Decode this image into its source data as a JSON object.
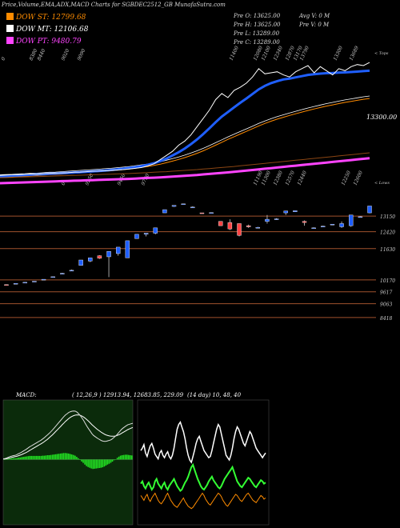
{
  "title": "Price,Volume,EMA,ADX,MACD Charts for SGBDEC2512_GB MunafaSutra.com",
  "legend": [
    {
      "label": "DOW ST: 12799.68",
      "color": "#ff8c00"
    },
    {
      "label": "DOW MT: 12106.68",
      "color": "#ffffff"
    },
    {
      "label": "DOW PT: 9480.79",
      "color": "#ff44ff"
    }
  ],
  "ohlc": {
    "open": "Pre   O: 13625.00",
    "high": "Pre   H: 13625.00",
    "low": "Pre   L: 13289.00",
    "close": "Pre   C: 13289.00",
    "avg_volume": "Avg V: 0  M",
    "volume": "Pre   V: 0  M"
  },
  "top_label": "< Tops",
  "bottom_label": "< Lows",
  "price_label": "13300.00",
  "chart_data": [
    {
      "type": "line",
      "name": "price-ema",
      "top_ticks": [
        "0",
        "8380",
        "8440",
        "9020",
        "9090",
        "11400",
        "12080",
        "12100",
        "12340",
        "12870",
        "13170",
        "13790",
        "13300",
        "13689"
      ],
      "bottom_ticks": [
        "0",
        "9250",
        "9450",
        "9790",
        "11190",
        "11300",
        "12380",
        "12570",
        "12440",
        "12250",
        "12600"
      ],
      "close": [
        8340,
        8360,
        8370,
        8380,
        8390,
        8410,
        8400,
        8420,
        8440,
        8450,
        8460,
        8470,
        8490,
        8500,
        8520,
        8540,
        8550,
        8560,
        8580,
        8600,
        8620,
        8650,
        8680,
        8720,
        8800,
        8900,
        9100,
        9300,
        9500,
        9800,
        10000,
        10300,
        10700,
        11100,
        11500,
        12000,
        12300,
        12100,
        12450,
        12600,
        12800,
        13100,
        13500,
        13250,
        13300,
        13350,
        13200,
        13100,
        13350,
        13500,
        13650,
        13300,
        13600,
        13400,
        13200,
        13500,
        13400,
        13600,
        13700,
        13650,
        13800
      ],
      "ema_short": [
        8300,
        8310,
        8330,
        8340,
        8360,
        8370,
        8390,
        8400,
        8420,
        8430,
        8450,
        8460,
        8480,
        8490,
        8510,
        8530,
        8550,
        8570,
        8600,
        8630,
        8660,
        8700,
        8740,
        8790,
        8850,
        8930,
        9030,
        9150,
        9300,
        9460,
        9640,
        9850,
        10080,
        10340,
        10620,
        10910,
        11180,
        11400,
        11630,
        11850,
        12060,
        12280,
        12500,
        12670,
        12800,
        12900,
        12980,
        13020,
        13080,
        13140,
        13200,
        13230,
        13260,
        13280,
        13290,
        13310,
        13320,
        13340,
        13360,
        13380,
        13400
      ],
      "ema_mid": [
        8250,
        8260,
        8270,
        8290,
        8300,
        8320,
        8330,
        8350,
        8370,
        8380,
        8400,
        8420,
        8440,
        8460,
        8480,
        8500,
        8520,
        8540,
        8560,
        8590,
        8620,
        8650,
        8690,
        8730,
        8770,
        8820,
        8880,
        8950,
        9030,
        9110,
        9200,
        9300,
        9410,
        9530,
        9660,
        9800,
        9940,
        10080,
        10210,
        10340,
        10470,
        10600,
        10730,
        10850,
        10960,
        11060,
        11150,
        11240,
        11320,
        11400,
        11480,
        11550,
        11620,
        11690,
        11750,
        11810,
        11870,
        11920,
        11970,
        12020,
        12060
      ],
      "ema_long": [
        8220,
        8230,
        8240,
        8250,
        8260,
        8270,
        8280,
        8290,
        8300,
        8310,
        8320,
        8330,
        8340,
        8350,
        8360,
        8370,
        8380,
        8390,
        8400,
        8410,
        8420,
        8430,
        8445,
        8460,
        8475,
        8490,
        8505,
        8520,
        8540,
        8560,
        8580,
        8600,
        8620,
        8645,
        8670,
        8695,
        8720,
        8745,
        8770,
        8800,
        8830,
        8860,
        8890,
        8920,
        8950,
        8980,
        9010,
        9040,
        9070,
        9100,
        9130,
        9160,
        9190,
        9220,
        9250,
        9280,
        9310,
        9340,
        9370,
        9400,
        9430
      ],
      "ylim": [
        8000,
        14500
      ]
    },
    {
      "type": "candlestick",
      "name": "daily-candles",
      "levels": [
        "13150",
        "12420",
        "11630",
        "10170",
        "9617",
        "9063",
        "8418"
      ],
      "level_values": [
        13150,
        12420,
        11630,
        10170,
        9617,
        9063,
        8418
      ],
      "candles": [
        {
          "o": 9950,
          "h": 9960,
          "l": 9940,
          "c": 9940
        },
        {
          "o": 10000,
          "h": 10010,
          "l": 9990,
          "c": 10010
        },
        {
          "o": 10050,
          "h": 10060,
          "l": 10040,
          "c": 10060
        },
        {
          "o": 10100,
          "h": 10110,
          "l": 10090,
          "c": 10110
        },
        {
          "o": 10180,
          "h": 10200,
          "l": 10170,
          "c": 10200
        },
        {
          "o": 10300,
          "h": 10320,
          "l": 10290,
          "c": 10320
        },
        {
          "o": 10450,
          "h": 10500,
          "l": 10440,
          "c": 10480
        },
        {
          "o": 10600,
          "h": 10650,
          "l": 10590,
          "c": 10620
        },
        {
          "o": 10850,
          "h": 11100,
          "l": 10840,
          "c": 11100
        },
        {
          "o": 11050,
          "h": 11200,
          "l": 11000,
          "c": 11200
        },
        {
          "o": 11300,
          "h": 11320,
          "l": 11150,
          "c": 11180
        },
        {
          "o": 11250,
          "h": 11500,
          "l": 10300,
          "c": 11500
        },
        {
          "o": 11400,
          "h": 11700,
          "l": 11300,
          "c": 11700
        },
        {
          "o": 11200,
          "h": 12000,
          "l": 11200,
          "c": 12000
        },
        {
          "o": 12100,
          "h": 12300,
          "l": 12100,
          "c": 12300
        },
        {
          "o": 12300,
          "h": 12350,
          "l": 12200,
          "c": 12350
        },
        {
          "o": 12350,
          "h": 12600,
          "l": 12300,
          "c": 12600
        },
        {
          "o": 13300,
          "h": 13450,
          "l": 13300,
          "c": 13450
        },
        {
          "o": 13600,
          "h": 13650,
          "l": 13580,
          "c": 13650
        },
        {
          "o": 13700,
          "h": 13720,
          "l": 13680,
          "c": 13720
        },
        {
          "o": 13550,
          "h": 13600,
          "l": 13550,
          "c": 13570
        },
        {
          "o": 13300,
          "h": 13300,
          "l": 13280,
          "c": 13290
        },
        {
          "o": 13310,
          "h": 13320,
          "l": 13300,
          "c": 13310
        },
        {
          "o": 12900,
          "h": 12900,
          "l": 12700,
          "c": 12700
        },
        {
          "o": 12850,
          "h": 13000,
          "l": 12500,
          "c": 12550
        },
        {
          "o": 12800,
          "h": 12800,
          "l": 12200,
          "c": 12250
        },
        {
          "o": 12700,
          "h": 12750,
          "l": 12600,
          "c": 12650
        },
        {
          "o": 12600,
          "h": 12650,
          "l": 12580,
          "c": 12620
        },
        {
          "o": 12900,
          "h": 13200,
          "l": 12800,
          "c": 13000
        },
        {
          "o": 13000,
          "h": 13050,
          "l": 12970,
          "c": 13020
        },
        {
          "o": 13300,
          "h": 13400,
          "l": 13200,
          "c": 13390
        },
        {
          "o": 13350,
          "h": 13400,
          "l": 13350,
          "c": 13400
        },
        {
          "o": 12900,
          "h": 12950,
          "l": 12700,
          "c": 12850
        },
        {
          "o": 12600,
          "h": 12620,
          "l": 12580,
          "c": 12600
        },
        {
          "o": 12680,
          "h": 12700,
          "l": 12660,
          "c": 12680
        },
        {
          "o": 12750,
          "h": 12770,
          "l": 12730,
          "c": 12770
        },
        {
          "o": 12650,
          "h": 12900,
          "l": 12600,
          "c": 12800
        },
        {
          "o": 12700,
          "h": 13200,
          "l": 12650,
          "c": 13200
        },
        {
          "o": 13100,
          "h": 13140,
          "l": 13080,
          "c": 13120
        },
        {
          "o": 13300,
          "h": 13620,
          "l": 13280,
          "c": 13620
        }
      ],
      "ylim": [
        8300,
        13900
      ]
    },
    {
      "type": "bar",
      "name": "macd",
      "title": "MACD:",
      "params": "( 12,26,9 ) 12913.94, 12683.85, 229.09",
      "macd_line": [
        30,
        40,
        60,
        90,
        120,
        140,
        160,
        170,
        190,
        230,
        260,
        300,
        340,
        380,
        420,
        470,
        520,
        560,
        600,
        640,
        680,
        720,
        760,
        800,
        850,
        900,
        960,
        1020,
        1080,
        1150,
        1220,
        1300,
        1380,
        1460,
        1540,
        1620,
        1700,
        1780,
        1850,
        1900,
        1950,
        1980,
        2000,
        2010,
        2000,
        1960,
        1900,
        1820,
        1720,
        1620,
        1500,
        1380,
        1280,
        1180,
        1080,
        1000,
        950,
        900,
        860,
        820,
        780,
        760,
        750,
        760,
        780,
        800,
        830,
        880,
        940,
        1000,
        1080,
        1160,
        1240,
        1300,
        1350,
        1400,
        1440,
        1460,
        1480,
        1500
      ],
      "signal_line": [
        20,
        25,
        35,
        50,
        70,
        85,
        100,
        115,
        130,
        150,
        175,
        200,
        230,
        260,
        290,
        330,
        370,
        410,
        450,
        490,
        530,
        570,
        610,
        650,
        690,
        740,
        790,
        840,
        900,
        960,
        1020,
        1090,
        1160,
        1230,
        1300,
        1370,
        1440,
        1510,
        1580,
        1640,
        1700,
        1750,
        1790,
        1820,
        1840,
        1850,
        1845,
        1830,
        1800,
        1760,
        1710,
        1650,
        1590,
        1520,
        1450,
        1390,
        1330,
        1270,
        1220,
        1170,
        1120,
        1080,
        1040,
        1010,
        990,
        975,
        965,
        965,
        970,
        985,
        1010,
        1040,
        1080,
        1120,
        1160,
        1200,
        1240,
        1270,
        1300,
        1330
      ],
      "histogram": [
        10,
        15,
        25,
        40,
        50,
        55,
        60,
        55,
        60,
        80,
        85,
        100,
        110,
        120,
        130,
        140,
        150,
        150,
        150,
        150,
        150,
        150,
        150,
        150,
        160,
        160,
        170,
        180,
        180,
        190,
        200,
        210,
        220,
        230,
        240,
        250,
        260,
        270,
        270,
        260,
        250,
        230,
        210,
        190,
        160,
        110,
        55,
        -10,
        -80,
        -140,
        -210,
        -270,
        -310,
        -340,
        -370,
        -390,
        -380,
        -370,
        -360,
        -350,
        -340,
        -320,
        -290,
        -250,
        -210,
        -175,
        -135,
        -85,
        -30,
        15,
        70,
        120,
        160,
        180,
        190,
        200,
        200,
        190,
        180,
        170
      ],
      "ylim": [
        -450,
        2200
      ]
    },
    {
      "type": "line",
      "name": "adx",
      "params": "(14 day) 10, 48, 40",
      "adx": [
        60,
        62,
        65,
        58,
        55,
        60,
        64,
        66,
        62,
        57,
        55,
        53,
        58,
        60,
        56,
        54,
        57,
        59,
        55,
        53,
        56,
        62,
        70,
        78,
        82,
        84,
        80,
        76,
        70,
        62,
        56,
        52,
        50,
        55,
        60,
        66,
        70,
        72,
        68,
        64,
        60,
        58,
        56,
        54,
        55,
        60,
        66,
        72,
        78,
        82,
        80,
        74,
        68,
        62,
        56,
        54,
        52,
        56,
        62,
        70,
        76,
        80,
        78,
        74,
        70,
        66,
        64,
        68,
        72,
        76,
        74,
        70,
        66,
        62,
        60,
        58,
        56,
        54,
        56,
        58
      ],
      "di_plus": [
        32,
        34,
        30,
        28,
        31,
        33,
        30,
        27,
        29,
        34,
        36,
        32,
        30,
        28,
        31,
        33,
        29,
        27,
        30,
        32,
        34,
        36,
        33,
        30,
        28,
        26,
        27,
        30,
        33,
        35,
        38,
        42,
        46,
        48,
        44,
        40,
        36,
        33,
        30,
        28,
        27,
        29,
        31,
        34,
        36,
        38,
        35,
        33,
        31,
        29,
        28,
        30,
        33,
        36,
        38,
        40,
        42,
        44,
        46,
        42,
        38,
        34,
        32,
        30,
        29,
        31,
        33,
        35,
        37,
        36,
        34,
        32,
        30,
        29,
        31,
        33,
        35,
        34,
        32,
        33
      ],
      "di_minus": [
        22,
        20,
        18,
        21,
        23,
        19,
        17,
        20,
        22,
        24,
        21,
        18,
        16,
        15,
        17,
        19,
        22,
        24,
        21,
        18,
        16,
        14,
        13,
        12,
        14,
        16,
        18,
        20,
        17,
        15,
        13,
        12,
        11,
        12,
        14,
        16,
        18,
        20,
        22,
        24,
        22,
        19,
        17,
        15,
        14,
        16,
        18,
        20,
        22,
        24,
        23,
        21,
        18,
        16,
        14,
        13,
        15,
        17,
        19,
        21,
        23,
        22,
        20,
        18,
        17,
        19,
        21,
        23,
        24,
        22,
        20,
        18,
        17,
        16,
        18,
        20,
        22,
        21,
        19,
        20
      ],
      "ylim": [
        0,
        100
      ]
    }
  ]
}
